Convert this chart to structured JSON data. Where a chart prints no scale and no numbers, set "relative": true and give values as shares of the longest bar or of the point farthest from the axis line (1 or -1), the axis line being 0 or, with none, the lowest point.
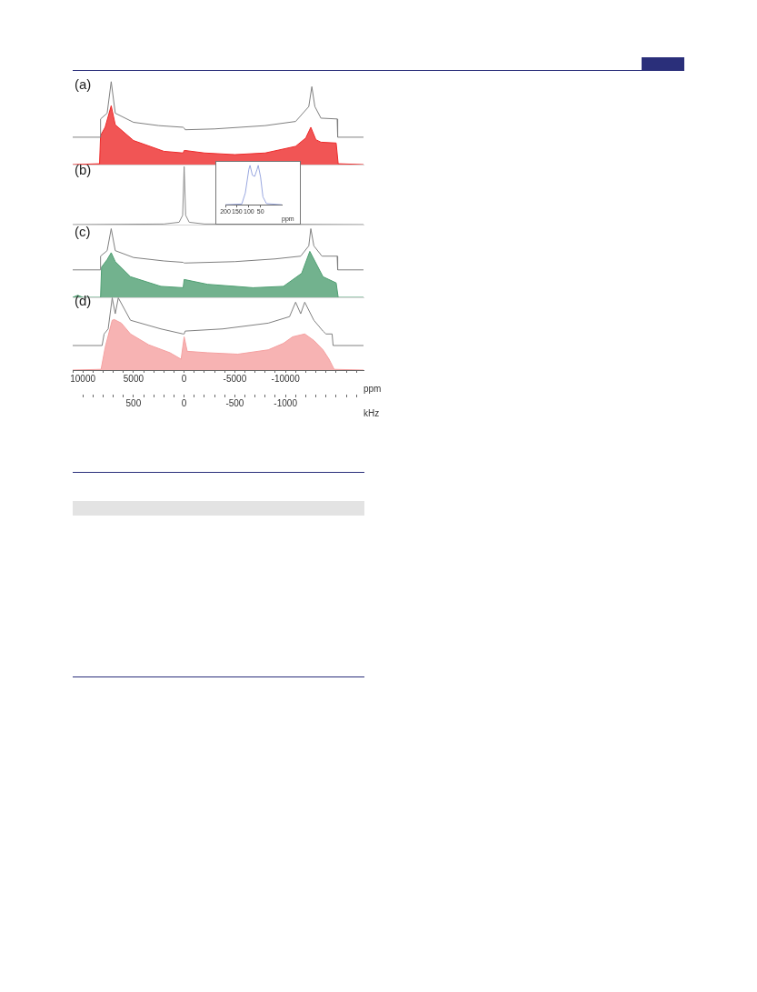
{
  "chart_data": [
    {
      "type": "line",
      "title": "(a)",
      "relative": true,
      "xlim": [
        11000,
        -17700
      ],
      "tick_labels": false,
      "series": [
        {
          "type": "line",
          "color": "#808080",
          "x": [
            11000,
            8300,
            8250,
            7600,
            7200,
            6800,
            5000,
            2500,
            100,
            0,
            -100,
            -3000,
            -8000,
            -11000,
            -12300,
            -12600,
            -12900,
            -13500,
            -15100,
            -15150,
            -17700
          ],
          "values": [
            0.33,
            0.33,
            0.55,
            0.62,
            1.0,
            0.62,
            0.51,
            0.47,
            0.45,
            0.44,
            0.42,
            0.43,
            0.47,
            0.52,
            0.7,
            0.94,
            0.7,
            0.56,
            0.55,
            0.33,
            0.33
          ]
        },
        {
          "type": "area",
          "color": "#ee2a2a",
          "x": [
            11000,
            8350,
            8250,
            7800,
            7200,
            6800,
            5000,
            2000,
            100,
            0,
            -100,
            -2000,
            -5000,
            -8000,
            -11000,
            -12000,
            -12500,
            -13000,
            -13500,
            -15000,
            -15200,
            -17700
          ],
          "values": [
            0,
            0.01,
            0.35,
            0.45,
            0.71,
            0.48,
            0.29,
            0.16,
            0.14,
            0.17,
            0.17,
            0.14,
            0.12,
            0.14,
            0.22,
            0.32,
            0.45,
            0.3,
            0.27,
            0.26,
            0.01,
            0
          ]
        }
      ]
    },
    {
      "type": "line",
      "title": "(b)",
      "relative": true,
      "xlim": [
        11000,
        -17700
      ],
      "tick_labels": false,
      "series": [
        {
          "type": "line",
          "color": "#8c8c8c",
          "x": [
            11000,
            2000,
            500,
            150,
            0,
            -150,
            -500,
            -2000,
            -17700
          ],
          "values": [
            0,
            0.01,
            0.04,
            0.16,
            1,
            0.16,
            0.04,
            0.01,
            0
          ]
        }
      ]
    },
    {
      "type": "line",
      "relative": true,
      "xlim": [
        200,
        -40
      ],
      "xticks": [
        200,
        150,
        100,
        50
      ],
      "xlabel": "ppm",
      "tick_labels": "x",
      "series": [
        {
          "type": "line",
          "color": "#9aa8e0",
          "x": [
            200,
            130,
            115,
            100,
            95,
            85,
            75,
            65,
            60,
            50,
            40,
            25,
            -40
          ],
          "values": [
            0,
            0.02,
            0.3,
            0.9,
            1.0,
            0.75,
            0.72,
            0.9,
            1.0,
            0.7,
            0.2,
            0.03,
            0
          ]
        }
      ]
    },
    {
      "type": "line",
      "title": "(c)",
      "relative": true,
      "xlim": [
        11000,
        -17700
      ],
      "tick_labels": false,
      "series": [
        {
          "type": "line",
          "color": "#808080",
          "x": [
            11000,
            8300,
            8250,
            7600,
            7200,
            6800,
            5000,
            2000,
            100,
            0,
            -100,
            -5000,
            -9000,
            -11500,
            -12300,
            -12500,
            -12800,
            -13600,
            -15100,
            -15150,
            -17700
          ],
          "values": [
            0.4,
            0.4,
            0.6,
            0.68,
            1,
            0.68,
            0.58,
            0.53,
            0.51,
            0.5,
            0.5,
            0.52,
            0.56,
            0.6,
            0.75,
            1,
            0.75,
            0.6,
            0.6,
            0.4,
            0.4
          ]
        },
        {
          "type": "area",
          "color": "#4f9f72",
          "x": [
            11000,
            10500,
            10000,
            8250,
            8150,
            7600,
            7200,
            6800,
            5300,
            2300,
            100,
            0,
            -2300,
            -6800,
            -9800,
            -11600,
            -12400,
            -13700,
            -15000,
            -15200,
            -17700
          ],
          "values": [
            0,
            0.03,
            0,
            0,
            0.44,
            0.55,
            0.65,
            0.52,
            0.3,
            0.16,
            0.14,
            0.26,
            0.19,
            0.14,
            0.16,
            0.35,
            0.67,
            0.3,
            0.21,
            0,
            0
          ]
        }
      ]
    },
    {
      "type": "line",
      "title": "(d)",
      "relative": true,
      "xlim": [
        11000,
        -17700
      ],
      "xticks": [
        {
          "value": 11000,
          "label": null
        },
        10000,
        {
          "value": 9000,
          "label": null
        },
        {
          "value": 8000,
          "label": null
        },
        {
          "value": 7000,
          "label": null
        },
        {
          "value": 6000,
          "label": null
        },
        5000,
        {
          "value": 4000,
          "label": null
        },
        {
          "value": 3000,
          "label": null
        },
        {
          "value": 2000,
          "label": null
        },
        {
          "value": 1000,
          "label": null
        },
        0,
        {
          "value": -1000,
          "label": null
        },
        {
          "value": -2000,
          "label": null
        },
        {
          "value": -3000,
          "label": null
        },
        {
          "value": -4000,
          "label": null
        },
        -5000,
        {
          "value": -6000,
          "label": null
        },
        {
          "value": -7000,
          "label": null
        },
        {
          "value": -8000,
          "label": null
        },
        {
          "value": -9000,
          "label": null
        },
        -10000,
        {
          "value": -11000,
          "label": null
        },
        {
          "value": -12000,
          "label": null
        },
        {
          "value": -13000,
          "label": null
        },
        {
          "value": -14000,
          "label": null
        },
        {
          "value": -15000,
          "label": null
        },
        {
          "value": -16000,
          "label": null
        },
        {
          "value": -17000,
          "label": null
        }
      ],
      "xlabel": "ppm",
      "x2lim": [
        1100,
        -1770
      ],
      "x2ticks": [
        {
          "value": 1000,
          "label": null
        },
        {
          "value": 900,
          "label": null
        },
        {
          "value": 800,
          "label": null
        },
        {
          "value": 700,
          "label": null
        },
        {
          "value": 600,
          "label": null
        },
        500,
        {
          "value": 400,
          "label": null
        },
        {
          "value": 300,
          "label": null
        },
        {
          "value": 200,
          "label": null
        },
        {
          "value": 100,
          "label": null
        },
        0,
        {
          "value": -100,
          "label": null
        },
        {
          "value": -200,
          "label": null
        },
        {
          "value": -300,
          "label": null
        },
        {
          "value": -400,
          "label": null
        },
        -500,
        {
          "value": -600,
          "label": null
        },
        {
          "value": -700,
          "label": null
        },
        {
          "value": -800,
          "label": null
        },
        {
          "value": -900,
          "label": null
        },
        -1000,
        {
          "value": -1100,
          "label": null
        },
        {
          "value": -1200,
          "label": null
        },
        {
          "value": -1300,
          "label": null
        },
        {
          "value": -1400,
          "label": null
        },
        {
          "value": -1500,
          "label": null
        },
        {
          "value": -1600,
          "label": null
        },
        {
          "value": -1700,
          "label": null
        }
      ],
      "x2label": "kHz",
      "tick_labels": "x",
      "series": [
        {
          "type": "line",
          "color": "#808080",
          "x": [
            11000,
            8100,
            7900,
            7500,
            7100,
            6800,
            6500,
            5300,
            2300,
            100,
            0,
            -100,
            -3800,
            -8300,
            -10400,
            -11000,
            -11500,
            -11900,
            -12800,
            -13700,
            -14000,
            -14600,
            -14700,
            -17700
          ],
          "values": [
            0.34,
            0.34,
            0.5,
            0.57,
            1,
            0.78,
            1,
            0.69,
            0.57,
            0.5,
            0.5,
            0.54,
            0.57,
            0.65,
            0.74,
            0.94,
            0.78,
            0.94,
            0.69,
            0.54,
            0.5,
            0.5,
            0.34,
            0.34
          ]
        },
        {
          "type": "area",
          "color": "#f5a0a0",
          "x": [
            11000,
            8200,
            7800,
            7100,
            6900,
            6200,
            5300,
            3500,
            1400,
            300,
            0,
            -300,
            -2300,
            -5300,
            -8300,
            -9800,
            -10700,
            -11900,
            -12800,
            -13700,
            -14300,
            -14800,
            -17700
          ],
          "values": [
            0,
            0.01,
            0.31,
            0.69,
            0.7,
            0.65,
            0.5,
            0.35,
            0.24,
            0.15,
            0.46,
            0.26,
            0.24,
            0.22,
            0.28,
            0.37,
            0.46,
            0.5,
            0.41,
            0.28,
            0.15,
            0.01,
            0
          ]
        }
      ]
    }
  ]
}
